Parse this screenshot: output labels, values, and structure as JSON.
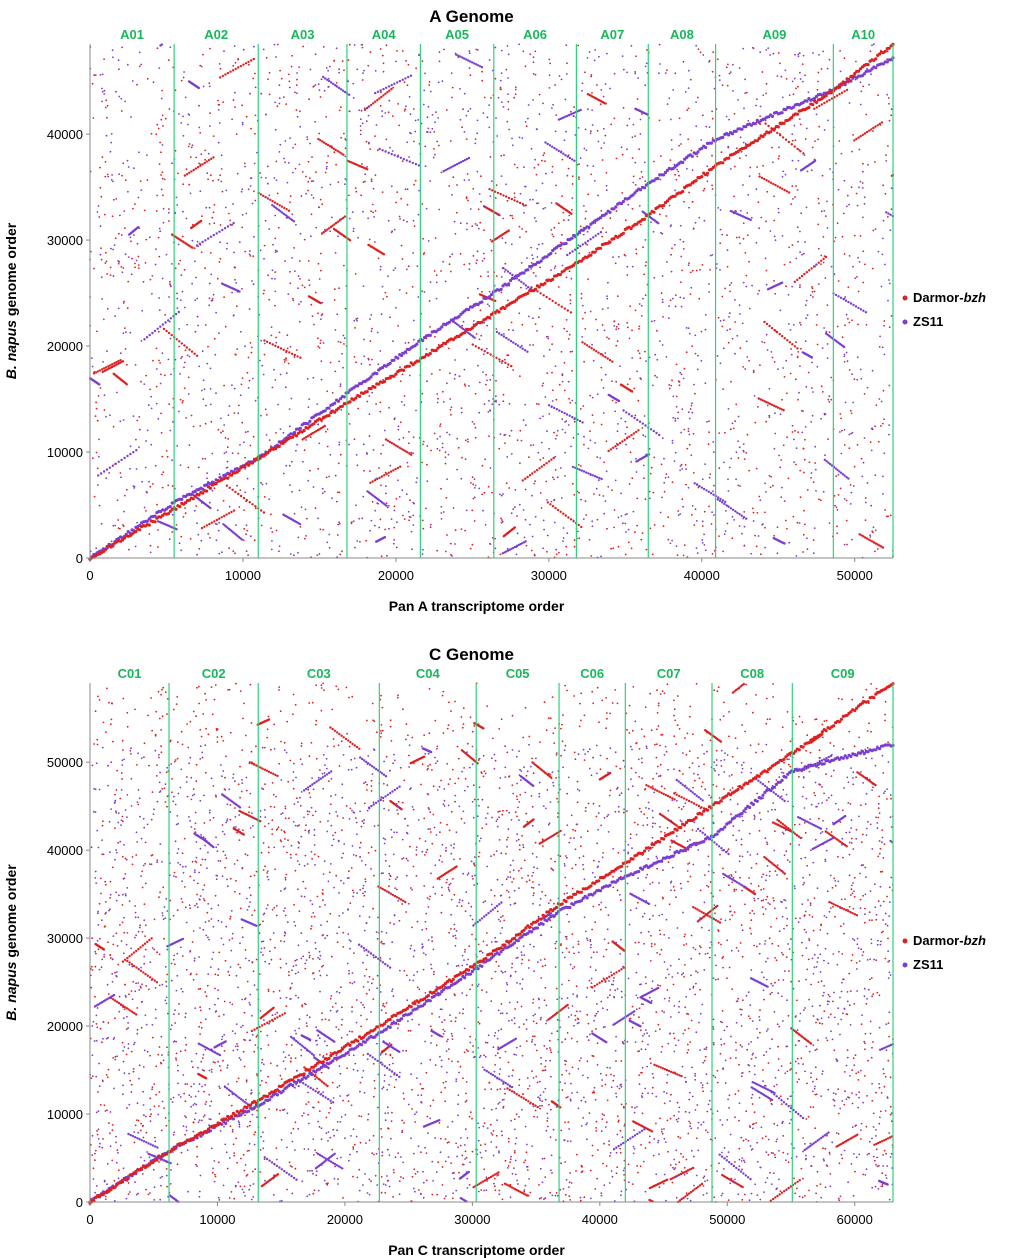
{
  "chart_data": [
    {
      "type": "scatter",
      "title": "A Genome",
      "xlabel": "Pan A transcriptome order",
      "ylabel_italic": "B. napus",
      "ylabel_rest": " genome order",
      "xlim": [
        0,
        52500
      ],
      "ylim": [
        0,
        48500
      ],
      "xticks": [
        0,
        10000,
        20000,
        30000,
        40000,
        50000
      ],
      "yticks": [
        0,
        10000,
        20000,
        30000,
        40000
      ],
      "chromosomes": [
        {
          "name": "A01",
          "start": 0,
          "end": 5500
        },
        {
          "name": "A02",
          "start": 5500,
          "end": 11000
        },
        {
          "name": "A03",
          "start": 11000,
          "end": 16800
        },
        {
          "name": "A04",
          "start": 16800,
          "end": 21600
        },
        {
          "name": "A05",
          "start": 21600,
          "end": 26400
        },
        {
          "name": "A06",
          "start": 26400,
          "end": 31800
        },
        {
          "name": "A07",
          "start": 31800,
          "end": 36500
        },
        {
          "name": "A08",
          "start": 36500,
          "end": 40900
        },
        {
          "name": "A09",
          "start": 40900,
          "end": 48600
        },
        {
          "name": "A10",
          "start": 48600,
          "end": 52500
        }
      ],
      "boundary_color": "#2fd27a",
      "series": [
        {
          "name_plain": "Darmor-",
          "name_italic": "bzh",
          "color": "#dd2020",
          "diagonal": [
            [
              0,
              0
            ],
            [
              5500,
              4600
            ],
            [
              11000,
              9400
            ],
            [
              16800,
              14600
            ],
            [
              21600,
              18800
            ],
            [
              26400,
              23000
            ],
            [
              31800,
              27800
            ],
            [
              36500,
              32300
            ],
            [
              40900,
              37000
            ],
            [
              48600,
              44100
            ],
            [
              52500,
              48500
            ]
          ]
        },
        {
          "name_plain": "ZS11",
          "name_italic": "",
          "color": "#7a3fd0",
          "diagonal": [
            [
              0,
              0
            ],
            [
              5500,
              5200
            ],
            [
              11000,
              9400
            ],
            [
              16800,
              15500
            ],
            [
              21600,
              20500
            ],
            [
              26400,
              25000
            ],
            [
              31800,
              30500
            ],
            [
              36500,
              35300
            ],
            [
              40900,
              39500
            ],
            [
              48600,
              44200
            ],
            [
              52500,
              47200
            ]
          ]
        }
      ]
    },
    {
      "type": "scatter",
      "title": "C Genome",
      "xlabel": "Pan C transcriptome order",
      "ylabel_italic": "B. napus",
      "ylabel_rest": " genome order",
      "xlim": [
        0,
        63000
      ],
      "ylim": [
        0,
        59000
      ],
      "xticks": [
        0,
        10000,
        20000,
        30000,
        40000,
        50000,
        60000
      ],
      "yticks": [
        0,
        10000,
        20000,
        30000,
        40000,
        50000
      ],
      "chromosomes": [
        {
          "name": "C01",
          "start": 0,
          "end": 6200
        },
        {
          "name": "C02",
          "start": 6200,
          "end": 13200
        },
        {
          "name": "C03",
          "start": 13200,
          "end": 22700
        },
        {
          "name": "C04",
          "start": 22700,
          "end": 30300
        },
        {
          "name": "C05",
          "start": 30300,
          "end": 36800
        },
        {
          "name": "C06",
          "start": 36800,
          "end": 42000
        },
        {
          "name": "C07",
          "start": 42000,
          "end": 48800
        },
        {
          "name": "C08",
          "start": 48800,
          "end": 55100
        },
        {
          "name": "C09",
          "start": 55100,
          "end": 63000
        }
      ],
      "boundary_color": "#2fd27a",
      "series": [
        {
          "name_plain": "Darmor-",
          "name_italic": "bzh",
          "color": "#dd2020",
          "diagonal": [
            [
              0,
              0
            ],
            [
              6200,
              5800
            ],
            [
              13200,
              11500
            ],
            [
              22700,
              20000
            ],
            [
              30300,
              27000
            ],
            [
              36800,
              33800
            ],
            [
              42000,
              38500
            ],
            [
              48800,
              45000
            ],
            [
              55100,
              51000
            ],
            [
              63000,
              59000
            ]
          ]
        },
        {
          "name_plain": "ZS11",
          "name_italic": "",
          "color": "#7a3fd0",
          "diagonal": [
            [
              0,
              0
            ],
            [
              6200,
              5800
            ],
            [
              13200,
              11000
            ],
            [
              22700,
              19200
            ],
            [
              30300,
              26500
            ],
            [
              36800,
              33000
            ],
            [
              42000,
              37000
            ],
            [
              48800,
              41500
            ],
            [
              55100,
              49000
            ],
            [
              63000,
              52000
            ]
          ]
        }
      ]
    }
  ]
}
